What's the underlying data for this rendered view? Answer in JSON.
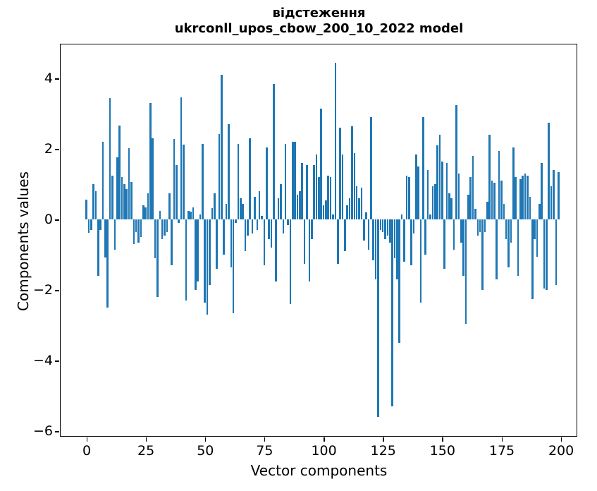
{
  "title": {
    "line1": "відстеження",
    "line2": "ukrconll_upos_cbow_200_10_2022 model"
  },
  "chart_data": {
    "type": "bar",
    "title": "відстеження\nukrconll_upos_cbow_200_10_2022 model",
    "xlabel": "Vector components",
    "ylabel": "Components values",
    "bar_color": "#1f77b4",
    "grid": false,
    "legend": "none",
    "x_ticks": [
      0,
      25,
      50,
      75,
      100,
      125,
      150,
      175,
      200
    ],
    "y_ticks": [
      4,
      2,
      0,
      -2,
      -4,
      -6
    ],
    "xlim": [
      -11.3,
      207.1
    ],
    "ylim": [
      -6.17,
      4.99
    ],
    "x_is_component_index_0_to_199": true,
    "values": [
      0.57,
      -0.37,
      -0.3,
      1.0,
      0.8,
      -1.6,
      -0.3,
      2.2,
      -1.07,
      -2.5,
      3.45,
      1.25,
      -0.85,
      1.77,
      2.67,
      1.2,
      1.0,
      0.87,
      2.03,
      1.07,
      -0.7,
      -0.35,
      -0.65,
      -0.5,
      0.4,
      0.35,
      0.75,
      3.3,
      2.3,
      -1.1,
      -2.2,
      0.25,
      -0.55,
      -0.45,
      -0.35,
      0.75,
      -1.3,
      2.28,
      1.54,
      -0.1,
      3.46,
      2.12,
      -2.3,
      0.25,
      0.22,
      0.35,
      -2.0,
      -1.75,
      0.15,
      2.15,
      -2.35,
      -2.7,
      -1.85,
      0.33,
      0.75,
      -1.4,
      2.43,
      4.1,
      -1.0,
      0.45,
      2.7,
      -1.35,
      -2.65,
      -0.1,
      2.15,
      0.6,
      0.45,
      -0.9,
      -0.45,
      2.3,
      -0.4,
      0.65,
      -0.3,
      0.8,
      0.1,
      -1.3,
      2.05,
      -0.55,
      -0.8,
      3.85,
      -1.75,
      0.6,
      1.0,
      -0.4,
      2.15,
      -0.15,
      -2.4,
      2.2,
      2.2,
      0.7,
      0.8,
      1.6,
      -1.25,
      1.55,
      -1.75,
      -0.55,
      1.55,
      1.85,
      1.2,
      3.15,
      0.4,
      0.55,
      1.25,
      1.2,
      0.15,
      4.45,
      -1.25,
      2.6,
      1.85,
      -0.9,
      0.4,
      0.6,
      2.65,
      1.88,
      0.95,
      0.6,
      0.9,
      -0.6,
      0.2,
      -0.85,
      2.9,
      -1.15,
      -1.7,
      -5.6,
      -0.3,
      -0.35,
      -0.55,
      -0.45,
      -0.65,
      -5.3,
      -1.1,
      -1.7,
      -3.5,
      0.15,
      -1.2,
      1.25,
      1.2,
      -1.3,
      -0.4,
      1.85,
      1.5,
      -2.35,
      2.9,
      -1.0,
      1.4,
      0.15,
      0.95,
      1.0,
      2.1,
      2.4,
      1.65,
      -1.4,
      1.6,
      0.75,
      0.6,
      -0.85,
      3.25,
      1.3,
      -0.65,
      -1.6,
      -2.95,
      0.7,
      1.2,
      1.8,
      0.3,
      -0.45,
      -0.35,
      -2.0,
      -0.35,
      0.5,
      2.4,
      1.1,
      1.05,
      -1.7,
      1.95,
      1.1,
      0.45,
      -0.55,
      -1.35,
      -0.65,
      2.05,
      1.2,
      -1.6,
      1.15,
      1.25,
      1.3,
      1.25,
      0.65,
      -2.25,
      -0.55,
      -1.05,
      0.45,
      1.6,
      -1.95,
      -2.0,
      2.75,
      0.95,
      1.4,
      -1.85,
      1.35
    ]
  }
}
